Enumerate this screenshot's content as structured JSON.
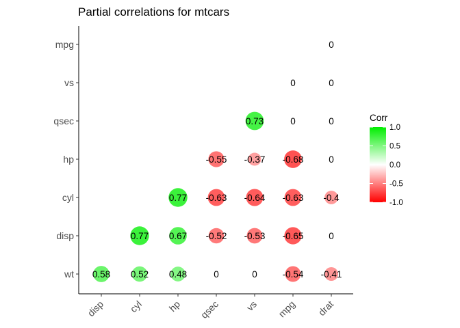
{
  "chart_data": {
    "type": "heatmap",
    "title": "Partial correlations for mtcars",
    "x_categories": [
      "disp",
      "cyl",
      "hp",
      "qsec",
      "vs",
      "mpg",
      "drat"
    ],
    "y_categories": [
      "wt",
      "disp",
      "cyl",
      "hp",
      "qsec",
      "vs",
      "mpg"
    ],
    "cells": [
      {
        "x": "disp",
        "y": "wt",
        "value": 0.58,
        "label": "0.58"
      },
      {
        "x": "cyl",
        "y": "wt",
        "value": 0.52,
        "label": "0.52"
      },
      {
        "x": "hp",
        "y": "wt",
        "value": 0.48,
        "label": "0.48"
      },
      {
        "x": "qsec",
        "y": "wt",
        "value": 0,
        "label": "0"
      },
      {
        "x": "vs",
        "y": "wt",
        "value": 0,
        "label": "0"
      },
      {
        "x": "mpg",
        "y": "wt",
        "value": -0.54,
        "label": "-0.54"
      },
      {
        "x": "drat",
        "y": "wt",
        "value": -0.41,
        "label": "-0.41"
      },
      {
        "x": "cyl",
        "y": "disp",
        "value": 0.77,
        "label": "0.77"
      },
      {
        "x": "hp",
        "y": "disp",
        "value": 0.67,
        "label": "0.67"
      },
      {
        "x": "qsec",
        "y": "disp",
        "value": -0.52,
        "label": "-0.52"
      },
      {
        "x": "vs",
        "y": "disp",
        "value": -0.53,
        "label": "-0.53"
      },
      {
        "x": "mpg",
        "y": "disp",
        "value": -0.65,
        "label": "-0.65"
      },
      {
        "x": "drat",
        "y": "disp",
        "value": 0,
        "label": "0"
      },
      {
        "x": "hp",
        "y": "cyl",
        "value": 0.77,
        "label": "0.77"
      },
      {
        "x": "qsec",
        "y": "cyl",
        "value": -0.63,
        "label": "-0.63"
      },
      {
        "x": "vs",
        "y": "cyl",
        "value": -0.64,
        "label": "-0.64"
      },
      {
        "x": "mpg",
        "y": "cyl",
        "value": -0.63,
        "label": "-0.63"
      },
      {
        "x": "drat",
        "y": "cyl",
        "value": -0.4,
        "label": "-0.4"
      },
      {
        "x": "qsec",
        "y": "hp",
        "value": -0.55,
        "label": "-0.55"
      },
      {
        "x": "vs",
        "y": "hp",
        "value": -0.37,
        "label": "-0.37"
      },
      {
        "x": "mpg",
        "y": "hp",
        "value": -0.68,
        "label": "-0.68"
      },
      {
        "x": "drat",
        "y": "hp",
        "value": 0,
        "label": "0"
      },
      {
        "x": "vs",
        "y": "qsec",
        "value": 0.73,
        "label": "0.73"
      },
      {
        "x": "mpg",
        "y": "qsec",
        "value": 0,
        "label": "0"
      },
      {
        "x": "drat",
        "y": "qsec",
        "value": 0,
        "label": "0"
      },
      {
        "x": "mpg",
        "y": "vs",
        "value": 0,
        "label": "0"
      },
      {
        "x": "drat",
        "y": "vs",
        "value": 0,
        "label": "0"
      },
      {
        "x": "drat",
        "y": "mpg",
        "value": 0,
        "label": "0"
      }
    ],
    "legend": {
      "title": "Corr",
      "ticks": [
        1.0,
        0.5,
        0.0,
        -0.5,
        -1.0
      ],
      "tick_labels": [
        "1.0",
        "0.5",
        "0.0",
        "-0.5",
        "-1.0"
      ],
      "placement": "right"
    },
    "colors": {
      "high": "#00ee00",
      "mid": "#ffffff",
      "low": "#ff0000",
      "axis": "#000000",
      "tick_text": "#4d4d4d"
    },
    "value_range": [
      -1,
      1
    ],
    "grid": false
  }
}
